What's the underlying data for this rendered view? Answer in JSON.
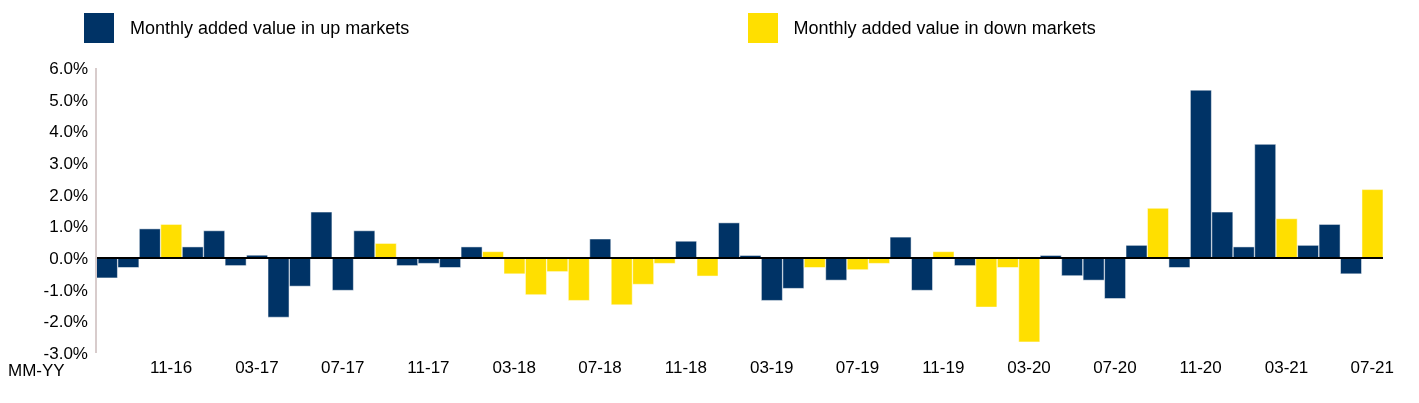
{
  "chart_data": {
    "type": "bar",
    "stacked": true,
    "xlabel": "MM-YY",
    "categories": [
      null,
      null,
      null,
      "11-16",
      null,
      null,
      null,
      "03-17",
      null,
      null,
      null,
      "07-17",
      null,
      null,
      null,
      "11-17",
      null,
      null,
      null,
      "03-18",
      null,
      null,
      null,
      "07-18",
      null,
      null,
      null,
      "11-18",
      null,
      null,
      null,
      "03-19",
      null,
      null,
      null,
      "07-19",
      null,
      null,
      null,
      "11-19",
      null,
      null,
      null,
      "03-20",
      null,
      null,
      null,
      "07-20",
      null,
      null,
      null,
      "11-20",
      null,
      null,
      null,
      "03-21",
      null,
      null,
      null,
      "07-21"
    ],
    "series": [
      {
        "name": "Monthly added value in up markets",
        "color": "#003366",
        "values": [
          -0.63,
          -0.3,
          0.92,
          null,
          0.35,
          0.86,
          -0.24,
          0.09,
          -1.87,
          -0.89,
          1.45,
          -1.02,
          0.86,
          null,
          -0.24,
          -0.17,
          -0.3,
          0.35,
          null,
          null,
          null,
          null,
          null,
          0.6,
          null,
          null,
          null,
          0.53,
          null,
          1.11,
          0.08,
          -1.34,
          -0.96,
          null,
          -0.7,
          null,
          null,
          0.66,
          -1.02,
          null,
          -0.24,
          null,
          null,
          null,
          0.08,
          -0.56,
          -0.7,
          -1.28,
          0.4,
          null,
          -0.3,
          5.3,
          1.45,
          0.35,
          3.59,
          null,
          0.4,
          1.06,
          -0.5,
          null
        ]
      },
      {
        "name": "Monthly added value in down markets",
        "color": "#ffdf00",
        "values": [
          null,
          null,
          null,
          1.06,
          null,
          null,
          null,
          null,
          null,
          null,
          null,
          null,
          null,
          0.46,
          null,
          null,
          null,
          null,
          0.2,
          -0.5,
          -1.16,
          -0.43,
          -1.34,
          null,
          -1.48,
          -0.83,
          -0.17,
          null,
          -0.57,
          null,
          null,
          null,
          null,
          -0.3,
          null,
          -0.37,
          -0.17,
          null,
          null,
          0.2,
          null,
          -1.55,
          -0.3,
          -2.65,
          null,
          null,
          null,
          null,
          null,
          1.57,
          null,
          null,
          null,
          null,
          null,
          1.24,
          null,
          null,
          null,
          2.16
        ]
      }
    ],
    "ylim": [
      -3,
      6
    ],
    "yticks": [
      {
        "value": -3,
        "label": "-3.0%"
      },
      {
        "value": -2,
        "label": "-2.0%"
      },
      {
        "value": -1,
        "label": "-1.0%"
      },
      {
        "value": 0,
        "label": "0.0%"
      },
      {
        "value": 1,
        "label": "1.0%"
      },
      {
        "value": 2,
        "label": "2.0%"
      },
      {
        "value": 3,
        "label": "3.0%"
      },
      {
        "value": 4,
        "label": "4.0%"
      },
      {
        "value": 5,
        "label": "5.0%"
      },
      {
        "value": 6,
        "label": "6.0%"
      }
    ],
    "legend": "top"
  }
}
